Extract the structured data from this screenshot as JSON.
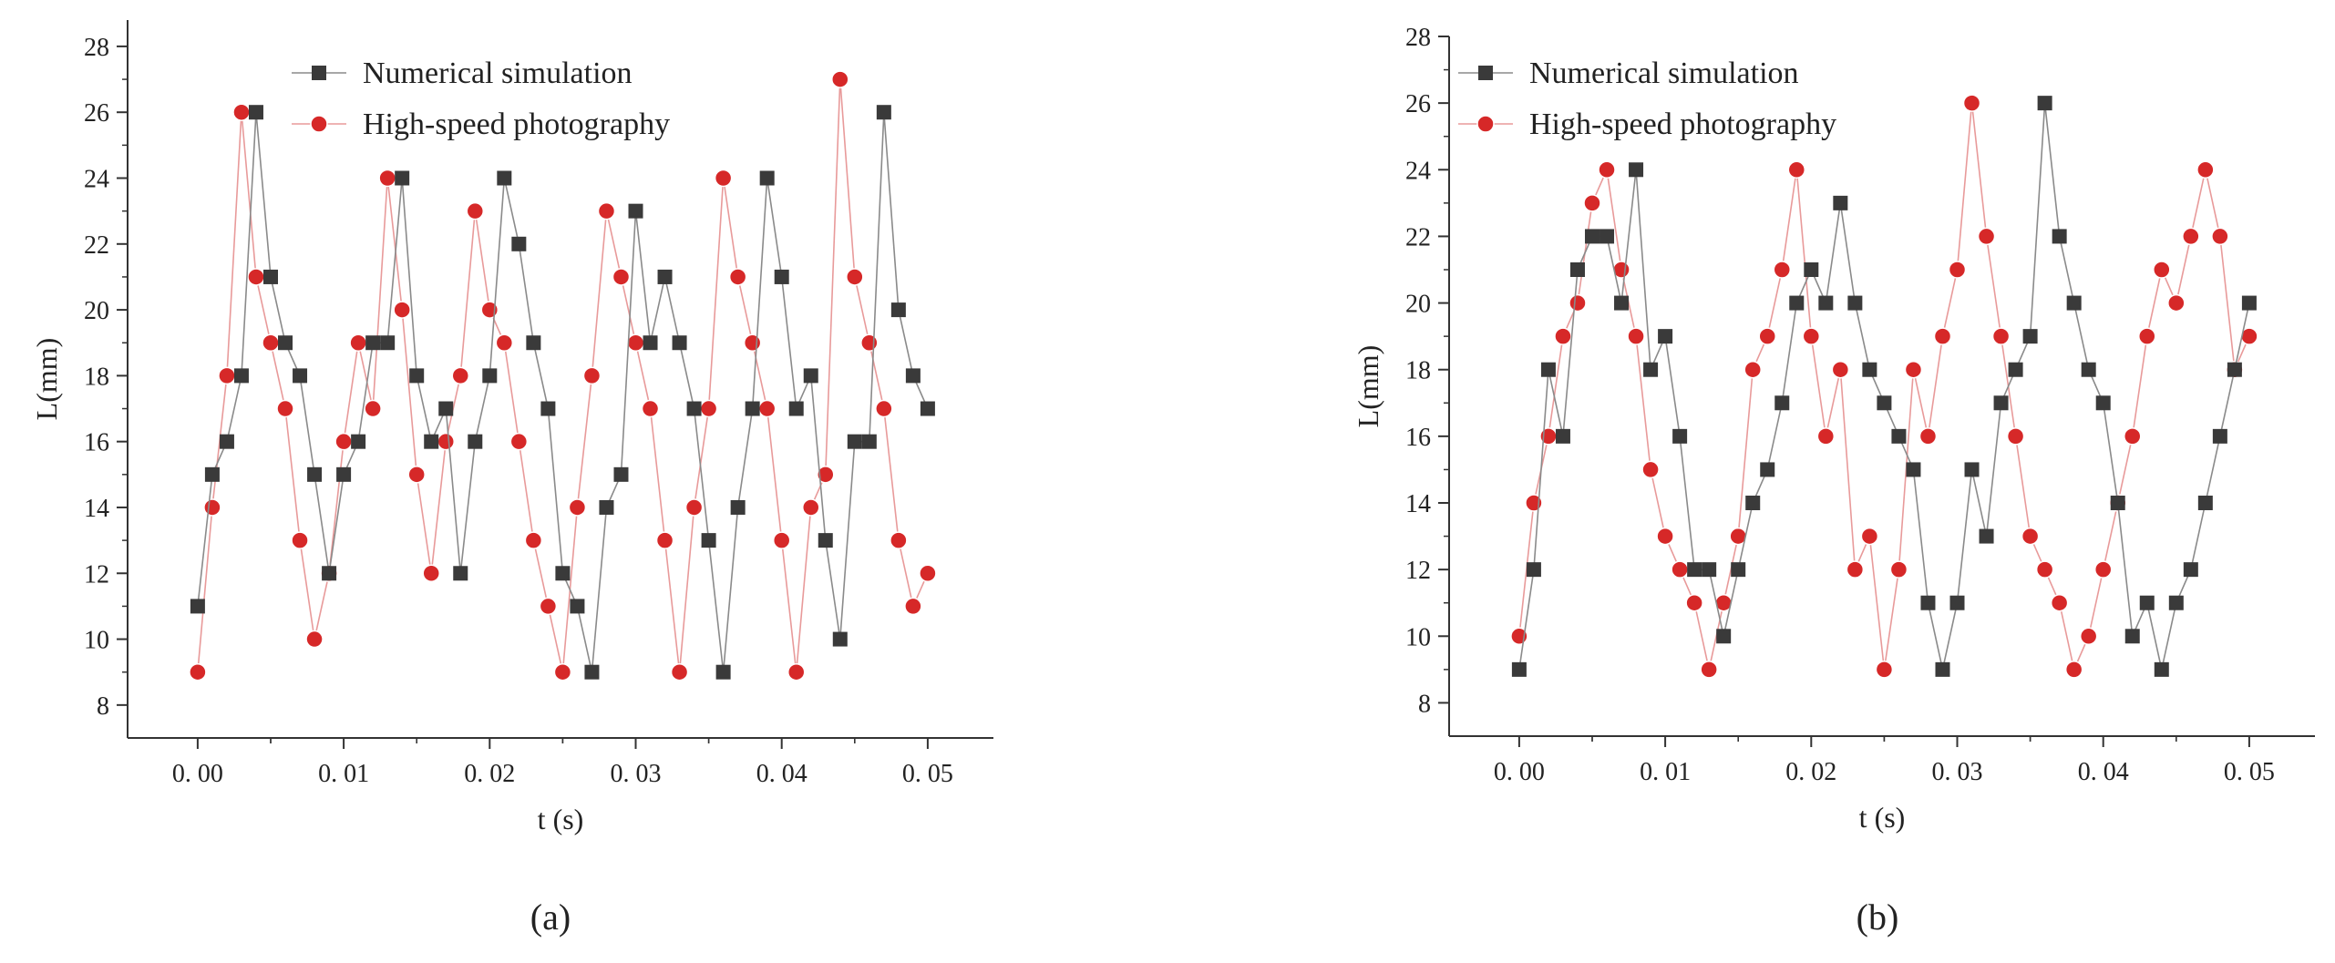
{
  "colors": {
    "numerical": "#3a3a3a",
    "photography": "#d62828",
    "photography_line": "#e89a9a",
    "numerical_line": "#8a8a8a",
    "axis": "#333333"
  },
  "chart_data": [
    {
      "type": "line",
      "caption": "(a)",
      "xlabel": "t (s)",
      "ylabel": "L(mm)",
      "xlim": [
        -0.0048,
        0.0545
      ],
      "ylim": [
        7,
        28.8
      ],
      "xticks": [
        0.0,
        0.01,
        0.02,
        0.03,
        0.04,
        0.05
      ],
      "xtick_labels": [
        "0. 00",
        "0. 01",
        "0. 02",
        "0. 03",
        "0. 04",
        "0. 05"
      ],
      "yticks": [
        8,
        10,
        12,
        14,
        16,
        18,
        20,
        22,
        24,
        26,
        28
      ],
      "ytick_labels": [
        "8",
        "10",
        "12",
        "14",
        "16",
        "18",
        "20",
        "22",
        "24",
        "26",
        "28"
      ],
      "grid": false,
      "legend_position": "top-center",
      "series": [
        {
          "name": "Numerical simulation",
          "marker": "square",
          "x": [
            0.0,
            0.001,
            0.002,
            0.003,
            0.004,
            0.005,
            0.006,
            0.007,
            0.008,
            0.009,
            0.01,
            0.011,
            0.012,
            0.013,
            0.014,
            0.015,
            0.016,
            0.017,
            0.018,
            0.019,
            0.02,
            0.021,
            0.022,
            0.023,
            0.024,
            0.025,
            0.026,
            0.027,
            0.028,
            0.029,
            0.03,
            0.031,
            0.032,
            0.033,
            0.034,
            0.035,
            0.036,
            0.037,
            0.038,
            0.039,
            0.04,
            0.041,
            0.042,
            0.043,
            0.044,
            0.045,
            0.046,
            0.047,
            0.048,
            0.049,
            0.05
          ],
          "y": [
            11,
            15,
            16,
            18,
            26,
            21,
            19,
            18,
            15,
            12,
            15,
            16,
            19,
            19,
            24,
            18,
            16,
            17,
            12,
            16,
            18,
            24,
            22,
            19,
            17,
            12,
            11,
            9,
            14,
            15,
            23,
            19,
            21,
            19,
            17,
            13,
            9,
            14,
            17,
            24,
            21,
            17,
            18,
            13,
            10,
            16,
            16,
            26,
            20,
            18,
            17
          ]
        },
        {
          "name": "High-speed photography",
          "marker": "circle",
          "x": [
            0.0,
            0.001,
            0.002,
            0.003,
            0.004,
            0.005,
            0.006,
            0.007,
            0.008,
            0.009,
            0.01,
            0.011,
            0.012,
            0.013,
            0.014,
            0.015,
            0.016,
            0.017,
            0.018,
            0.019,
            0.02,
            0.021,
            0.022,
            0.023,
            0.024,
            0.025,
            0.026,
            0.027,
            0.028,
            0.029,
            0.03,
            0.031,
            0.032,
            0.033,
            0.034,
            0.035,
            0.036,
            0.037,
            0.038,
            0.039,
            0.04,
            0.041,
            0.042,
            0.043,
            0.044,
            0.045,
            0.046,
            0.047,
            0.048,
            0.049,
            0.05
          ],
          "y": [
            9,
            14,
            18,
            26,
            21,
            19,
            17,
            13,
            10,
            12,
            16,
            19,
            17,
            24,
            20,
            15,
            12,
            16,
            18,
            23,
            20,
            19,
            16,
            13,
            11,
            9,
            14,
            18,
            23,
            21,
            19,
            17,
            13,
            9,
            14,
            17,
            24,
            21,
            19,
            17,
            13,
            9,
            14,
            15,
            27,
            21,
            19,
            17,
            13,
            11,
            12
          ]
        }
      ]
    },
    {
      "type": "line",
      "caption": "(b)",
      "xlabel": "t (s)",
      "ylabel": "L(mm)",
      "xlim": [
        -0.0048,
        0.0545
      ],
      "ylim": [
        7,
        28
      ],
      "xticks": [
        0.0,
        0.01,
        0.02,
        0.03,
        0.04,
        0.05
      ],
      "xtick_labels": [
        "0. 00",
        "0. 01",
        "0. 02",
        "0. 03",
        "0. 04",
        "0. 05"
      ],
      "yticks": [
        8,
        10,
        12,
        14,
        16,
        18,
        20,
        22,
        24,
        26,
        28
      ],
      "ytick_labels": [
        "8",
        "10",
        "12",
        "14",
        "16",
        "18",
        "20",
        "22",
        "24",
        "26",
        "28"
      ],
      "grid": false,
      "legend_position": "top-left",
      "series": [
        {
          "name": "Numerical simulation",
          "marker": "square",
          "x": [
            0.0,
            0.001,
            0.002,
            0.003,
            0.004,
            0.005,
            0.006,
            0.007,
            0.008,
            0.009,
            0.01,
            0.011,
            0.012,
            0.013,
            0.014,
            0.015,
            0.016,
            0.017,
            0.018,
            0.019,
            0.02,
            0.021,
            0.022,
            0.023,
            0.024,
            0.025,
            0.026,
            0.027,
            0.028,
            0.029,
            0.03,
            0.031,
            0.032,
            0.033,
            0.034,
            0.035,
            0.036,
            0.037,
            0.038,
            0.039,
            0.04,
            0.041,
            0.042,
            0.043,
            0.044,
            0.045,
            0.046,
            0.047,
            0.048,
            0.049,
            0.05
          ],
          "y": [
            9,
            12,
            18,
            16,
            21,
            22,
            22,
            20,
            24,
            18,
            19,
            16,
            12,
            12,
            10,
            12,
            14,
            15,
            17,
            20,
            21,
            20,
            23,
            20,
            18,
            17,
            16,
            15,
            11,
            9,
            11,
            15,
            13,
            17,
            18,
            19,
            26,
            22,
            20,
            18,
            17,
            14,
            10,
            11,
            9,
            11,
            12,
            14,
            16,
            18,
            20
          ]
        },
        {
          "name": "High-speed photography",
          "marker": "circle",
          "x": [
            0.0,
            0.001,
            0.002,
            0.003,
            0.004,
            0.005,
            0.006,
            0.007,
            0.008,
            0.009,
            0.01,
            0.011,
            0.012,
            0.013,
            0.014,
            0.015,
            0.016,
            0.017,
            0.018,
            0.019,
            0.02,
            0.021,
            0.022,
            0.023,
            0.024,
            0.025,
            0.026,
            0.027,
            0.028,
            0.029,
            0.03,
            0.031,
            0.032,
            0.033,
            0.034,
            0.035,
            0.036,
            0.037,
            0.038,
            0.039,
            0.04,
            0.041,
            0.042,
            0.043,
            0.044,
            0.045,
            0.046,
            0.047,
            0.048,
            0.049,
            0.05
          ],
          "y": [
            10,
            14,
            16,
            19,
            20,
            23,
            24,
            21,
            19,
            15,
            13,
            12,
            11,
            9,
            11,
            13,
            18,
            19,
            21,
            24,
            19,
            16,
            18,
            12,
            13,
            9,
            12,
            18,
            16,
            19,
            21,
            26,
            22,
            19,
            16,
            13,
            12,
            11,
            9,
            10,
            12,
            14,
            16,
            19,
            21,
            20,
            22,
            24,
            22,
            18,
            19
          ]
        }
      ]
    }
  ]
}
